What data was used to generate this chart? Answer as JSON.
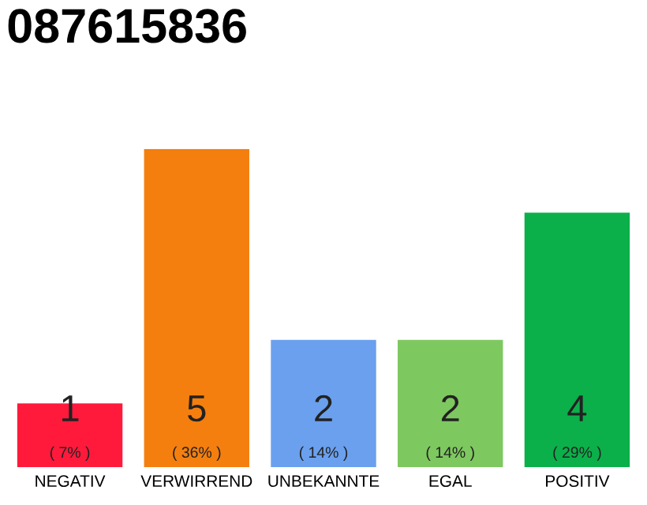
{
  "chart_data": {
    "type": "bar",
    "title": "087615836",
    "categories": [
      "NEGATIV",
      "VERWIRREND",
      "UNBEKANNTE",
      "EGAL",
      "POSITIV"
    ],
    "values": [
      1,
      5,
      2,
      2,
      4
    ],
    "colors": [
      "#ff1a3c",
      "#f47f0e",
      "#6aa0ee",
      "#7ec860",
      "#0bb04a"
    ],
    "value_labels": [
      "1\n( 7% )",
      "5\n( 36% )",
      "2\n( 14% )",
      "2\n( 14% )",
      "4\n( 29% )"
    ],
    "grid": false,
    "legend": false
  }
}
